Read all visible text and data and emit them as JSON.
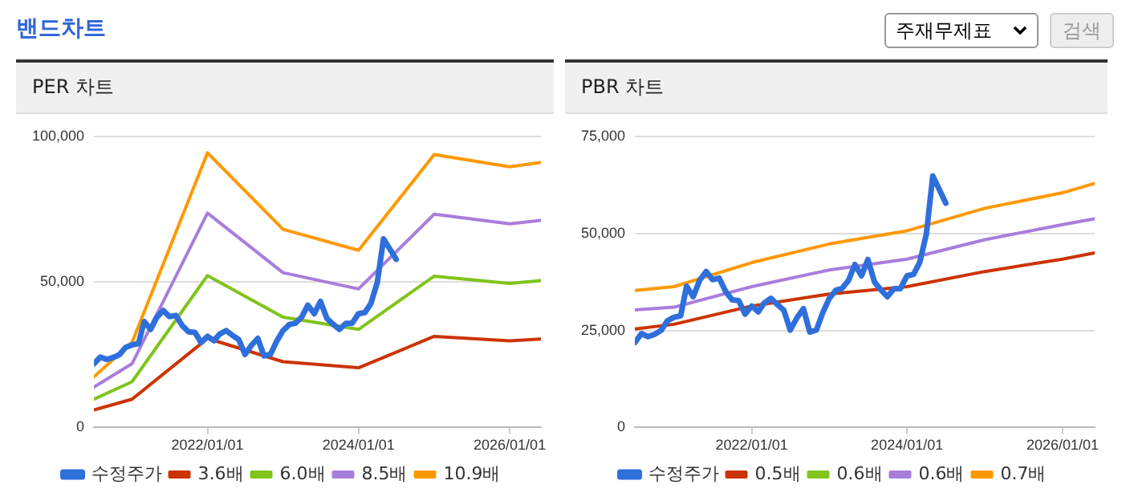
{
  "chart_data": [
    {
      "type": "other",
      "title": "밴드차트",
      "annotations": [
        "주재무제표",
        "검색"
      ]
    },
    {
      "type": "line",
      "title": "PER 차트",
      "xlim": [
        "2020-07",
        "2026-06"
      ],
      "xticks": [
        {
          "value": "2022-01-01",
          "label": "2022/01/01"
        },
        {
          "value": "2024-01-01",
          "label": "2024/01/01"
        },
        {
          "value": "2026-01-01",
          "label": "2026/01/01"
        }
      ],
      "ylim": [
        0,
        100000
      ],
      "yticks": [
        0,
        {
          "value": 50000,
          "label": "50,000"
        },
        {
          "value": 100000,
          "label": "100,000"
        }
      ],
      "grid": "y",
      "legend": "bottom",
      "marker": "none",
      "line_style": "solid",
      "series": [
        {
          "name": "수정주가",
          "color": "#2f6fdc",
          "x": [
            "2020-07",
            "2020-08",
            "2020-09",
            "2020-10",
            "2020-11",
            "2020-12",
            "2021-01",
            "2021-02",
            "2021-03",
            "2021-04",
            "2021-05",
            "2021-06",
            "2021-07",
            "2021-08",
            "2021-09",
            "2021-10",
            "2021-11",
            "2021-12",
            "2022-01",
            "2022-02",
            "2022-03",
            "2022-04",
            "2022-05",
            "2022-06",
            "2022-07",
            "2022-08",
            "2022-09",
            "2022-10",
            "2022-11",
            "2022-12",
            "2023-01",
            "2023-02",
            "2023-03",
            "2023-04",
            "2023-05",
            "2023-06",
            "2023-07",
            "2023-08",
            "2023-09",
            "2023-10",
            "2023-11",
            "2023-12",
            "2024-01",
            "2024-02",
            "2024-03",
            "2024-04",
            "2024-05",
            "2024-06",
            "2024-07"
          ],
          "values": [
            21900,
            24200,
            23400,
            24000,
            25000,
            27500,
            28400,
            28800,
            36400,
            33700,
            37900,
            40200,
            38100,
            38500,
            35000,
            32900,
            32700,
            29200,
            31300,
            29800,
            32100,
            33300,
            31700,
            30200,
            25100,
            28200,
            30600,
            24600,
            25100,
            29600,
            33300,
            35400,
            35800,
            37900,
            42000,
            39100,
            43300,
            37500,
            35400,
            33700,
            35800,
            35800,
            39100,
            39500,
            42600,
            49900,
            64800,
            61300,
            57800
          ]
        },
        {
          "name": "3.6배",
          "color": "#cc3300",
          "x": [
            "2020-07",
            "2021-01",
            "2022-01",
            "2023-01",
            "2024-01",
            "2025-01",
            "2026-01",
            "2026-06"
          ],
          "values": [
            6000,
            9700,
            30600,
            22600,
            20500,
            31300,
            29800,
            30400
          ]
        },
        {
          "name": "6.0배",
          "color": "#80c41c",
          "x": [
            "2020-07",
            "2021-01",
            "2022-01",
            "2023-01",
            "2024-01",
            "2025-01",
            "2026-01",
            "2026-06"
          ],
          "values": [
            9700,
            15700,
            52200,
            37900,
            33700,
            52000,
            49500,
            50500
          ]
        },
        {
          "name": "8.5배",
          "color": "#a97ddc",
          "x": [
            "2020-07",
            "2021-01",
            "2022-01",
            "2023-01",
            "2024-01",
            "2025-01",
            "2026-01",
            "2026-06"
          ],
          "values": [
            13900,
            21900,
            73700,
            53200,
            47600,
            73300,
            70000,
            71200
          ]
        },
        {
          "name": "10.9배",
          "color": "#ff9900",
          "x": [
            "2020-07",
            "2021-01",
            "2022-01",
            "2023-01",
            "2024-01",
            "2025-01",
            "2026-01",
            "2026-06"
          ],
          "values": [
            17400,
            29200,
            94400,
            68100,
            60900,
            93800,
            89600,
            91100
          ]
        }
      ]
    },
    {
      "type": "line",
      "title": "PBR 차트",
      "xlim": [
        "2020-07",
        "2026-06"
      ],
      "xticks": [
        {
          "value": "2022-01-01",
          "label": "2022/01/01"
        },
        {
          "value": "2024-01-01",
          "label": "2024/01/01"
        },
        {
          "value": "2026-01-01",
          "label": "2026/01/01"
        }
      ],
      "ylim": [
        0,
        75000
      ],
      "yticks": [
        0,
        {
          "value": 25000,
          "label": "25,000"
        },
        {
          "value": 50000,
          "label": "50,000"
        },
        {
          "value": 75000,
          "label": "75,000"
        }
      ],
      "grid": "y",
      "legend": "bottom",
      "marker": "none",
      "line_style": "solid",
      "series": [
        {
          "name": "수정주가",
          "color": "#2f6fdc",
          "x": [
            "2020-07",
            "2020-08",
            "2020-09",
            "2020-10",
            "2020-11",
            "2020-12",
            "2021-01",
            "2021-02",
            "2021-03",
            "2021-04",
            "2021-05",
            "2021-06",
            "2021-07",
            "2021-08",
            "2021-09",
            "2021-10",
            "2021-11",
            "2021-12",
            "2022-01",
            "2022-02",
            "2022-03",
            "2022-04",
            "2022-05",
            "2022-06",
            "2022-07",
            "2022-08",
            "2022-09",
            "2022-10",
            "2022-11",
            "2022-12",
            "2023-01",
            "2023-02",
            "2023-03",
            "2023-04",
            "2023-05",
            "2023-06",
            "2023-07",
            "2023-08",
            "2023-09",
            "2023-10",
            "2023-11",
            "2023-12",
            "2024-01",
            "2024-02",
            "2024-03",
            "2024-04",
            "2024-05",
            "2024-06",
            "2024-07"
          ],
          "values": [
            21900,
            24200,
            23400,
            24000,
            25000,
            27500,
            28400,
            28800,
            36400,
            33700,
            37900,
            40200,
            38100,
            38500,
            35000,
            32900,
            32700,
            29200,
            31300,
            29800,
            32100,
            33300,
            31700,
            30200,
            25100,
            28200,
            30600,
            24600,
            25100,
            29600,
            33300,
            35400,
            35800,
            37900,
            42000,
            39100,
            43300,
            37500,
            35400,
            33700,
            35800,
            35800,
            39100,
            39500,
            42600,
            49900,
            64800,
            61300,
            57800
          ]
        },
        {
          "name": "0.5배",
          "color": "#cc3300",
          "x": [
            "2020-07",
            "2021-01",
            "2022-01",
            "2023-01",
            "2024-01",
            "2025-01",
            "2026-01",
            "2026-06"
          ],
          "values": [
            25400,
            26600,
            31300,
            34400,
            36300,
            40200,
            43400,
            45000
          ]
        },
        {
          "name": "0.6배",
          "color": "#80c41c"
        },
        {
          "name": "0.6배",
          "color": "#a97ddc",
          "x": [
            "2020-07",
            "2021-01",
            "2022-01",
            "2023-01",
            "2024-01",
            "2025-01",
            "2026-01",
            "2026-06"
          ],
          "values": [
            30300,
            31000,
            36300,
            40600,
            43400,
            48400,
            52300,
            53800
          ]
        },
        {
          "name": "0.7배",
          "color": "#ff9900",
          "x": [
            "2020-07",
            "2021-01",
            "2022-01",
            "2023-01",
            "2024-01",
            "2025-01",
            "2026-01",
            "2026-06"
          ],
          "values": [
            35300,
            36300,
            42500,
            47300,
            50700,
            56500,
            60500,
            62900
          ]
        }
      ]
    }
  ]
}
